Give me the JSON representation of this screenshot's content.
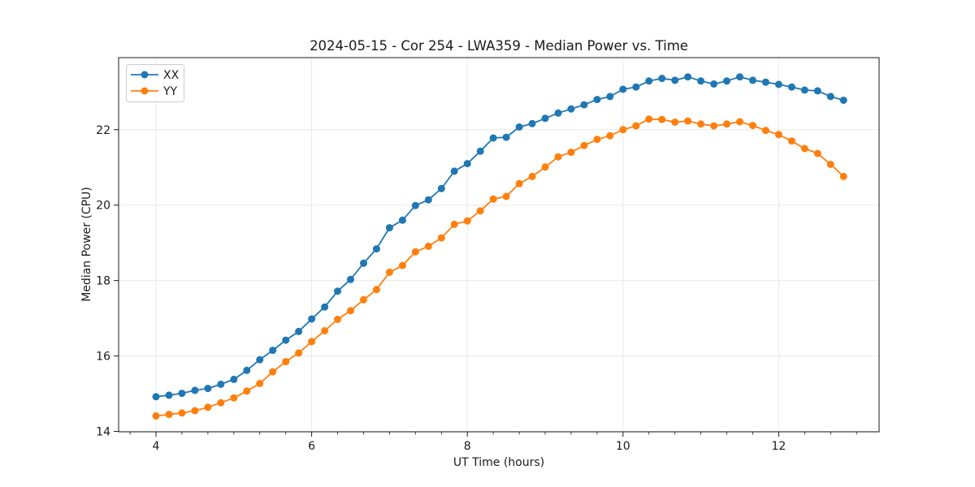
{
  "title": "2024-05-15 - Cor 254 - LWA359 - Median Power vs. Time",
  "chart_data": {
    "type": "line",
    "title": "2024-05-15 - Cor 254 - LWA359 - Median Power vs. Time",
    "xlabel": "UT Time (hours)",
    "ylabel": "Median Power (CPU)",
    "xlim": [
      3.52,
      13.29
    ],
    "ylim": [
      13.99,
      23.91
    ],
    "x_ticks": [
      4,
      6,
      8,
      10,
      12
    ],
    "y_ticks": [
      14,
      16,
      18,
      20,
      22
    ],
    "x_minor_step": 0.3333,
    "grid": true,
    "grid_color": "#e8e8e8",
    "spine_color": "#1a1a1a",
    "background_color": "#ffffff",
    "legend_position": "upper left",
    "marker": "circle",
    "x": [
      4.0,
      4.167,
      4.333,
      4.5,
      4.667,
      4.833,
      5.0,
      5.167,
      5.333,
      5.5,
      5.667,
      5.833,
      6.0,
      6.167,
      6.333,
      6.5,
      6.667,
      6.833,
      7.0,
      7.167,
      7.333,
      7.5,
      7.667,
      7.833,
      8.0,
      8.167,
      8.333,
      8.5,
      8.667,
      8.833,
      9.0,
      9.167,
      9.333,
      9.5,
      9.667,
      9.833,
      10.0,
      10.167,
      10.333,
      10.5,
      10.667,
      10.833,
      11.0,
      11.167,
      11.333,
      11.5,
      11.667,
      11.833,
      12.0,
      12.167,
      12.333,
      12.5,
      12.667,
      12.833
    ],
    "series": [
      {
        "name": "XX",
        "color": "#1f77b4",
        "values": [
          14.92,
          14.96,
          15.01,
          15.09,
          15.14,
          15.25,
          15.38,
          15.62,
          15.9,
          16.15,
          16.42,
          16.65,
          16.98,
          17.3,
          17.72,
          18.03,
          18.46,
          18.84,
          19.4,
          19.6,
          19.99,
          20.14,
          20.44,
          20.9,
          21.1,
          21.43,
          21.78,
          21.8,
          22.07,
          22.16,
          22.3,
          22.44,
          22.55,
          22.66,
          22.8,
          22.88,
          23.07,
          23.13,
          23.29,
          23.36,
          23.31,
          23.4,
          23.29,
          23.21,
          23.29,
          23.4,
          23.31,
          23.26,
          23.2,
          23.13,
          23.05,
          23.03,
          22.88,
          22.78
        ]
      },
      {
        "name": "YY",
        "color": "#ff7f0e",
        "values": [
          14.41,
          14.45,
          14.49,
          14.55,
          14.64,
          14.76,
          14.89,
          15.07,
          15.27,
          15.58,
          15.85,
          16.08,
          16.38,
          16.67,
          16.97,
          17.2,
          17.49,
          17.76,
          18.22,
          18.4,
          18.76,
          18.91,
          19.13,
          19.49,
          19.58,
          19.85,
          20.16,
          20.23,
          20.57,
          20.76,
          21.01,
          21.28,
          21.4,
          21.58,
          21.74,
          21.84,
          22.0,
          22.1,
          22.28,
          22.27,
          22.2,
          22.23,
          22.15,
          22.1,
          22.15,
          22.21,
          22.11,
          21.98,
          21.87,
          21.7,
          21.5,
          21.37,
          21.08,
          20.76
        ]
      }
    ]
  }
}
